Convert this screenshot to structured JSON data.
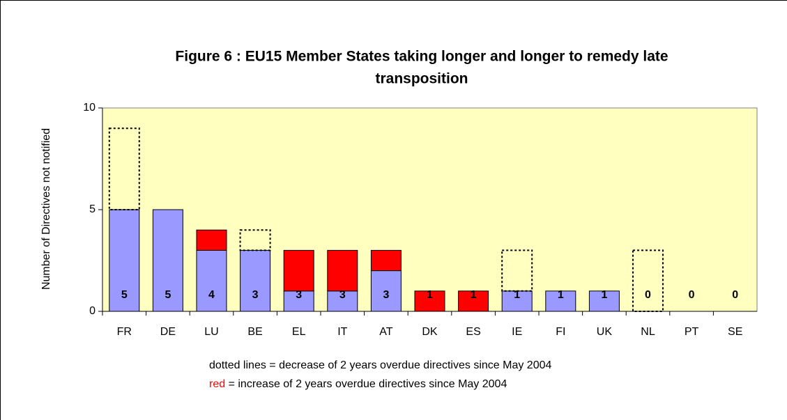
{
  "chart_data": {
    "type": "stacked_bar",
    "title": [
      "Figure 6 : EU15 Member States taking longer and longer to remedy late",
      "transposition"
    ],
    "y_label": "Number of Directives not notified",
    "categories": [
      "FR",
      "DE",
      "LU",
      "BE",
      "EL",
      "IT",
      "AT",
      "DK",
      "ES",
      "IE",
      "FI",
      "UK",
      "NL",
      "PT",
      "SE"
    ],
    "series": [
      {
        "color": "#9999ff",
        "style": "solid",
        "values": [
          5,
          5,
          3,
          3,
          1,
          1,
          2,
          0,
          0,
          1,
          1,
          1,
          0,
          0,
          0
        ]
      },
      {
        "color": "#ff0000",
        "style": "solid",
        "values": [
          0,
          0,
          1,
          0,
          2,
          2,
          1,
          1,
          1,
          0,
          0,
          0,
          0,
          0,
          0
        ]
      },
      {
        "color": "#000000",
        "style": "dotted",
        "values": [
          4,
          0,
          0,
          1,
          0,
          0,
          0,
          0,
          0,
          2,
          0,
          0,
          3,
          0,
          0
        ]
      }
    ],
    "data_labels": [
      5,
      5,
      4,
      3,
      3,
      3,
      3,
      1,
      1,
      1,
      1,
      1,
      0,
      0,
      0
    ],
    "ylim": [
      0,
      10
    ],
    "yticks": [
      0,
      5,
      10
    ],
    "plot_background": "#ffffc0",
    "notes": [
      {
        "text": "dotted lines = decrease of 2 years overdue directives since May 2004"
      },
      {
        "highlight": "red",
        "highlight_color": "#ff0000",
        "text": " = increase of 2 years overdue directives since May 2004"
      }
    ]
  }
}
